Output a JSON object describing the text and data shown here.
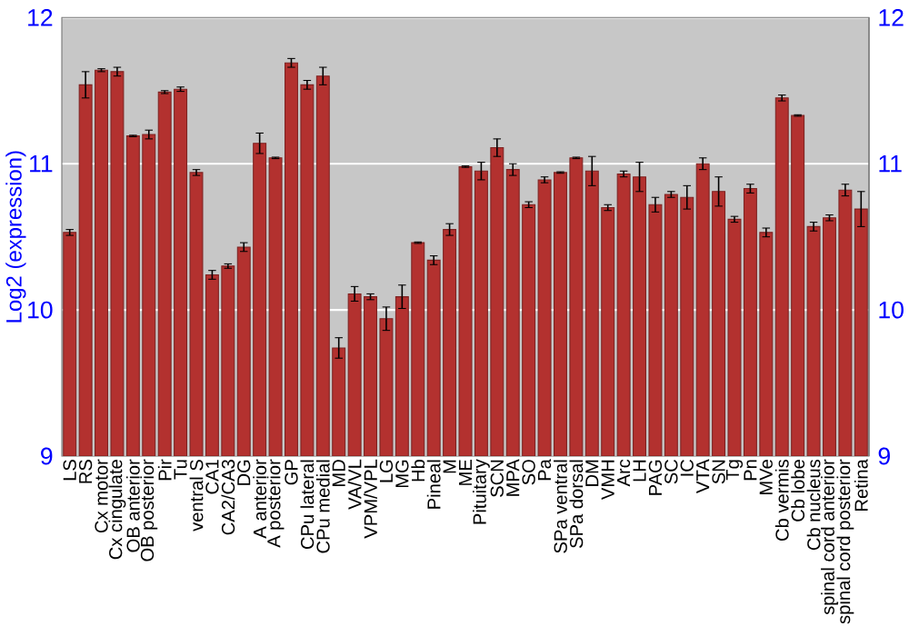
{
  "chart_data": {
    "type": "bar",
    "ylabel": "Log2 (expression)",
    "categories": [
      "LS",
      "RS",
      "Cx motor",
      "Cx cingulate",
      "OB anterior",
      "OB posterior",
      "Pir",
      "Tu",
      "ventral S",
      "CA1",
      "CA2/CA3",
      "DG",
      "A anterior",
      "A posterior",
      "GP",
      "CPu lateral",
      "CPu medial",
      "MD",
      "VA/VL",
      "VPM/VPL",
      "LG",
      "MG",
      "Hb",
      "Pineal",
      "M",
      "ME",
      "Pituitary",
      "SCN",
      "MPA",
      "SO",
      "Pa",
      "SPa ventral",
      "SPa dorsal",
      "DM",
      "VMH",
      "Arc",
      "LH",
      "PAG",
      "SC",
      "IC",
      "VTA",
      "SN",
      "Tg",
      "Pn",
      "MVe",
      "Cb vermis",
      "Cb lobe",
      "Cb nucleus",
      "spinal cord anterior",
      "spinal cord posterior",
      "Retina"
    ],
    "values": [
      10.53,
      11.54,
      11.64,
      11.63,
      11.19,
      11.2,
      11.49,
      11.51,
      10.94,
      10.24,
      10.3,
      10.43,
      11.14,
      11.04,
      11.69,
      11.54,
      11.6,
      9.74,
      10.11,
      10.09,
      9.94,
      10.09,
      10.46,
      10.34,
      10.55,
      10.98,
      10.95,
      11.11,
      10.96,
      10.72,
      10.89,
      10.94,
      11.04,
      10.95,
      10.7,
      10.93,
      10.91,
      10.72,
      10.79,
      10.77,
      11.0,
      10.81,
      10.62,
      10.83,
      10.53,
      11.45,
      11.33,
      10.57,
      10.63,
      10.82,
      10.69
    ],
    "errors": [
      0.02,
      0.09,
      0.01,
      0.03,
      0.005,
      0.03,
      0.01,
      0.015,
      0.02,
      0.03,
      0.015,
      0.03,
      0.07,
      0.005,
      0.03,
      0.03,
      0.06,
      0.07,
      0.05,
      0.02,
      0.08,
      0.08,
      0.005,
      0.03,
      0.04,
      0.005,
      0.06,
      0.06,
      0.04,
      0.02,
      0.02,
      0.005,
      0.005,
      0.1,
      0.02,
      0.02,
      0.1,
      0.05,
      0.02,
      0.08,
      0.04,
      0.1,
      0.02,
      0.03,
      0.03,
      0.02,
      0.005,
      0.03,
      0.02,
      0.04,
      0.12
    ],
    "color": "#b3312f",
    "ylim": [
      9,
      12
    ],
    "yticks": [
      9,
      10,
      11,
      12
    ],
    "y2lim": [
      9,
      12
    ],
    "y2ticks": [
      9,
      10,
      11,
      12
    ],
    "grid": "y"
  }
}
